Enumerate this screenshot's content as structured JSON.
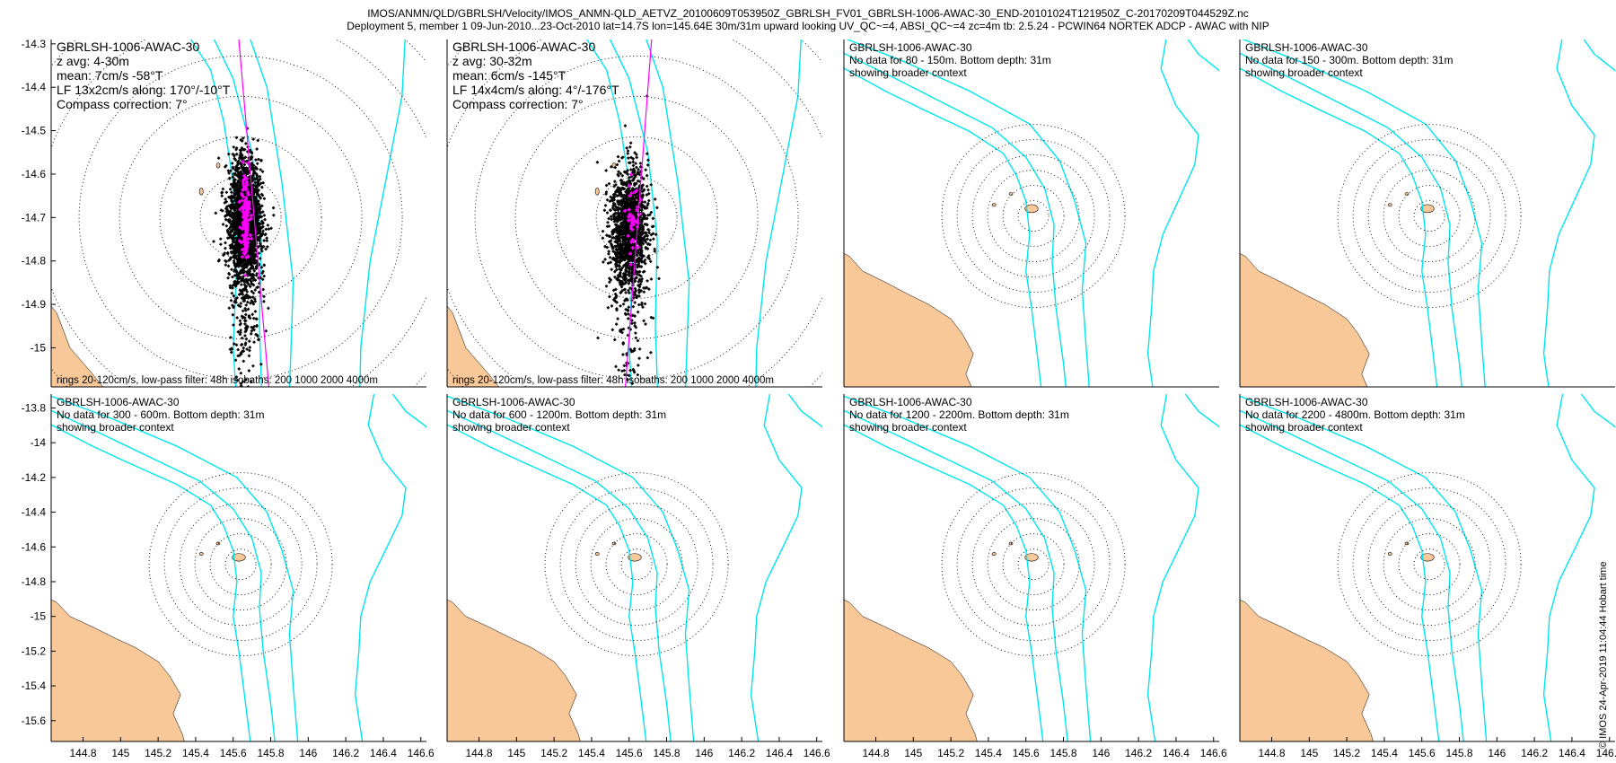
{
  "header": {
    "line1": "IMOS/ANMN/QLD/GBRLSH/Velocity/IMOS_ANMN-QLD_AETVZ_20100609T053950Z_GBRLSH_FV01_GBRLSH-1006-AWAC-30_END-20101024T121950Z_C-20170209T044529Z.nc",
    "line2": "Deployment 5, member 1 09-Jun-2010...23-Oct-2010 lat=14.7S lon=145.64E 30m/31m upward looking UV_QC~=4, ABSI_QC~=4 zc=4m tb: 2.5.24 - PCWIN64 NORTEK ADCP - AWAC with NIP"
  },
  "credit": "© IMOS 24-Apr-2019 11:04:44 Hobart time",
  "colors": {
    "land": "#f9c898",
    "isobath": "#00e5ee",
    "lf_marks": "#ff00ff",
    "scatter": "#000000",
    "axis": "#000000"
  },
  "chart_data": [
    {
      "type": "scatter",
      "panel": "row1-col1",
      "xlim": [
        144.63,
        146.63
      ],
      "ylim": [
        -15.09,
        -14.29
      ],
      "xticks": [],
      "yticks": [
        -14.3,
        -14.4,
        -14.5,
        -14.6,
        -14.7,
        -14.8,
        -14.9,
        -15
      ],
      "ytick_labels": [
        "-14.3",
        "-14.4",
        "-14.5",
        "-14.6",
        "-14.7",
        "-14.8",
        "-14.9",
        "-15"
      ],
      "annotation": [
        "GBRLSH-1006-AWAC-30",
        "z avg: 4-30m",
        "mean: 7cm/s -58°T",
        "LF 13x2cm/s along: 170°/-10°T",
        "Compass correction: 7°"
      ],
      "footer": "rings 20-120cm/s, low-pass filter: 48h isobaths: 200 1000 2000 4000m",
      "center": [
        145.64,
        -14.7
      ],
      "scatter": {
        "mean_x": 145.665,
        "mean_y": -14.7,
        "sd_x": 0.042,
        "sd_y": 0.065,
        "n": 2500,
        "tail_to": -15.09
      },
      "lf_points": {
        "mean_x": 145.665,
        "mean_y": -14.69,
        "sd_x": 0.012,
        "sd_y": 0.05,
        "n": 140
      },
      "lf_axis_line": [
        [
          145.63,
          -14.29
        ],
        [
          145.79,
          -15.09
        ]
      ]
    },
    {
      "type": "scatter",
      "panel": "row1-col2",
      "xlim": [
        144.63,
        146.63
      ],
      "ylim": [
        -15.09,
        -14.29
      ],
      "xticks": [],
      "yticks": [],
      "annotation": [
        "GBRLSH-1006-AWAC-30",
        "z avg: 30-32m",
        "mean: 6cm/s -145°T",
        "LF 14x4cm/s along: 4°/-176°T",
        "Compass correction: 7°"
      ],
      "footer": "rings 20-120cm/s, low-pass filter: 48h isobaths: 200 1000 2000 4000m",
      "center": [
        145.64,
        -14.7
      ],
      "scatter": {
        "mean_x": 145.6,
        "mean_y": -14.72,
        "sd_x": 0.05,
        "sd_y": 0.07,
        "n": 1500,
        "tail_to": -15.02
      },
      "lf_points": {
        "mean_x": 145.62,
        "mean_y": -14.7,
        "sd_x": 0.018,
        "sd_y": 0.04,
        "n": 40
      },
      "lf_axis_line": [
        [
          145.72,
          -14.29
        ],
        [
          145.58,
          -15.09
        ]
      ]
    },
    {
      "type": "scatter",
      "panel": "row1-col3",
      "xlim": [
        144.63,
        146.63
      ],
      "ylim": [
        -15.63,
        -13.74
      ],
      "xticks": [],
      "yticks": [],
      "annotation": [
        "GBRLSH-1006-AWAC-30",
        "No data for 80 - 150m. Bottom depth: 31m",
        "showing broader context"
      ],
      "footer": "",
      "center": [
        145.64,
        -14.7
      ]
    },
    {
      "type": "scatter",
      "panel": "row1-col4",
      "xlim": [
        144.63,
        146.63
      ],
      "ylim": [
        -15.63,
        -13.74
      ],
      "xticks": [],
      "yticks": [],
      "annotation": [
        "GBRLSH-1006-AWAC-30",
        "No data for 150 - 300m. Bottom depth: 31m",
        "showing broader context"
      ],
      "footer": "",
      "center": [
        145.64,
        -14.7
      ]
    },
    {
      "type": "scatter",
      "panel": "row2-col1",
      "xlim": [
        144.63,
        146.63
      ],
      "ylim": [
        -15.72,
        -13.72
      ],
      "xticks": [
        144.8,
        145,
        145.2,
        145.4,
        145.6,
        145.8,
        146,
        146.2,
        146.4,
        146.6
      ],
      "xtick_labels": [
        "144.8",
        "145",
        "145.2",
        "145.4",
        "145.6",
        "145.8",
        "146",
        "146.2",
        "146.4",
        "146.6"
      ],
      "yticks": [
        -13.8,
        -14,
        -14.2,
        -14.4,
        -14.6,
        -14.8,
        -15,
        -15.2,
        -15.4,
        -15.6
      ],
      "ytick_labels": [
        "-13.8",
        "-14",
        "-14.2",
        "-14.4",
        "-14.6",
        "-14.8",
        "-15",
        "-15.2",
        "-15.4",
        "-15.6"
      ],
      "annotation": [
        "GBRLSH-1006-AWAC-30",
        "No data for 300 - 600m. Bottom depth: 31m",
        "showing broader context"
      ],
      "footer": "",
      "center": [
        145.64,
        -14.7
      ]
    },
    {
      "type": "scatter",
      "panel": "row2-col2",
      "xlim": [
        144.63,
        146.63
      ],
      "ylim": [
        -15.72,
        -13.72
      ],
      "xticks": [
        144.8,
        145,
        145.2,
        145.4,
        145.6,
        145.8,
        146,
        146.2,
        146.4,
        146.6
      ],
      "xtick_labels": [
        "144.8",
        "145",
        "145.2",
        "145.4",
        "145.6",
        "145.8",
        "146",
        "146.2",
        "146.4",
        "146.6"
      ],
      "yticks": [],
      "annotation": [
        "GBRLSH-1006-AWAC-30",
        "No data for 600 - 1200m. Bottom depth: 31m",
        "showing broader context"
      ],
      "footer": "",
      "center": [
        145.64,
        -14.7
      ]
    },
    {
      "type": "scatter",
      "panel": "row2-col3",
      "xlim": [
        144.63,
        146.63
      ],
      "ylim": [
        -15.72,
        -13.72
      ],
      "xticks": [
        144.8,
        145,
        145.2,
        145.4,
        145.6,
        145.8,
        146,
        146.2,
        146.4,
        146.6
      ],
      "xtick_labels": [
        "144.8",
        "145",
        "145.2",
        "145.4",
        "145.6",
        "145.8",
        "146",
        "146.2",
        "146.4",
        "146.6"
      ],
      "yticks": [],
      "annotation": [
        "GBRLSH-1006-AWAC-30",
        "No data for 1200 - 2200m. Bottom depth: 31m",
        "showing broader context"
      ],
      "footer": "",
      "center": [
        145.64,
        -14.7
      ]
    },
    {
      "type": "scatter",
      "panel": "row2-col4",
      "xlim": [
        144.63,
        146.63
      ],
      "ylim": [
        -15.72,
        -13.72
      ],
      "xticks": [
        144.8,
        145,
        145.2,
        145.4,
        145.6,
        145.8,
        146,
        146.2,
        146.4,
        146.6
      ],
      "xtick_labels": [
        "144.8",
        "145",
        "145.2",
        "145.4",
        "145.6",
        "145.8",
        "146",
        "146.2",
        "146.4",
        "146.6"
      ],
      "yticks": [],
      "annotation": [
        "GBRLSH-1006-AWAC-30",
        "No data for 2200 - 4800m. Bottom depth: 31m",
        "showing broader context"
      ],
      "footer": "",
      "center": [
        145.64,
        -14.7
      ]
    }
  ]
}
